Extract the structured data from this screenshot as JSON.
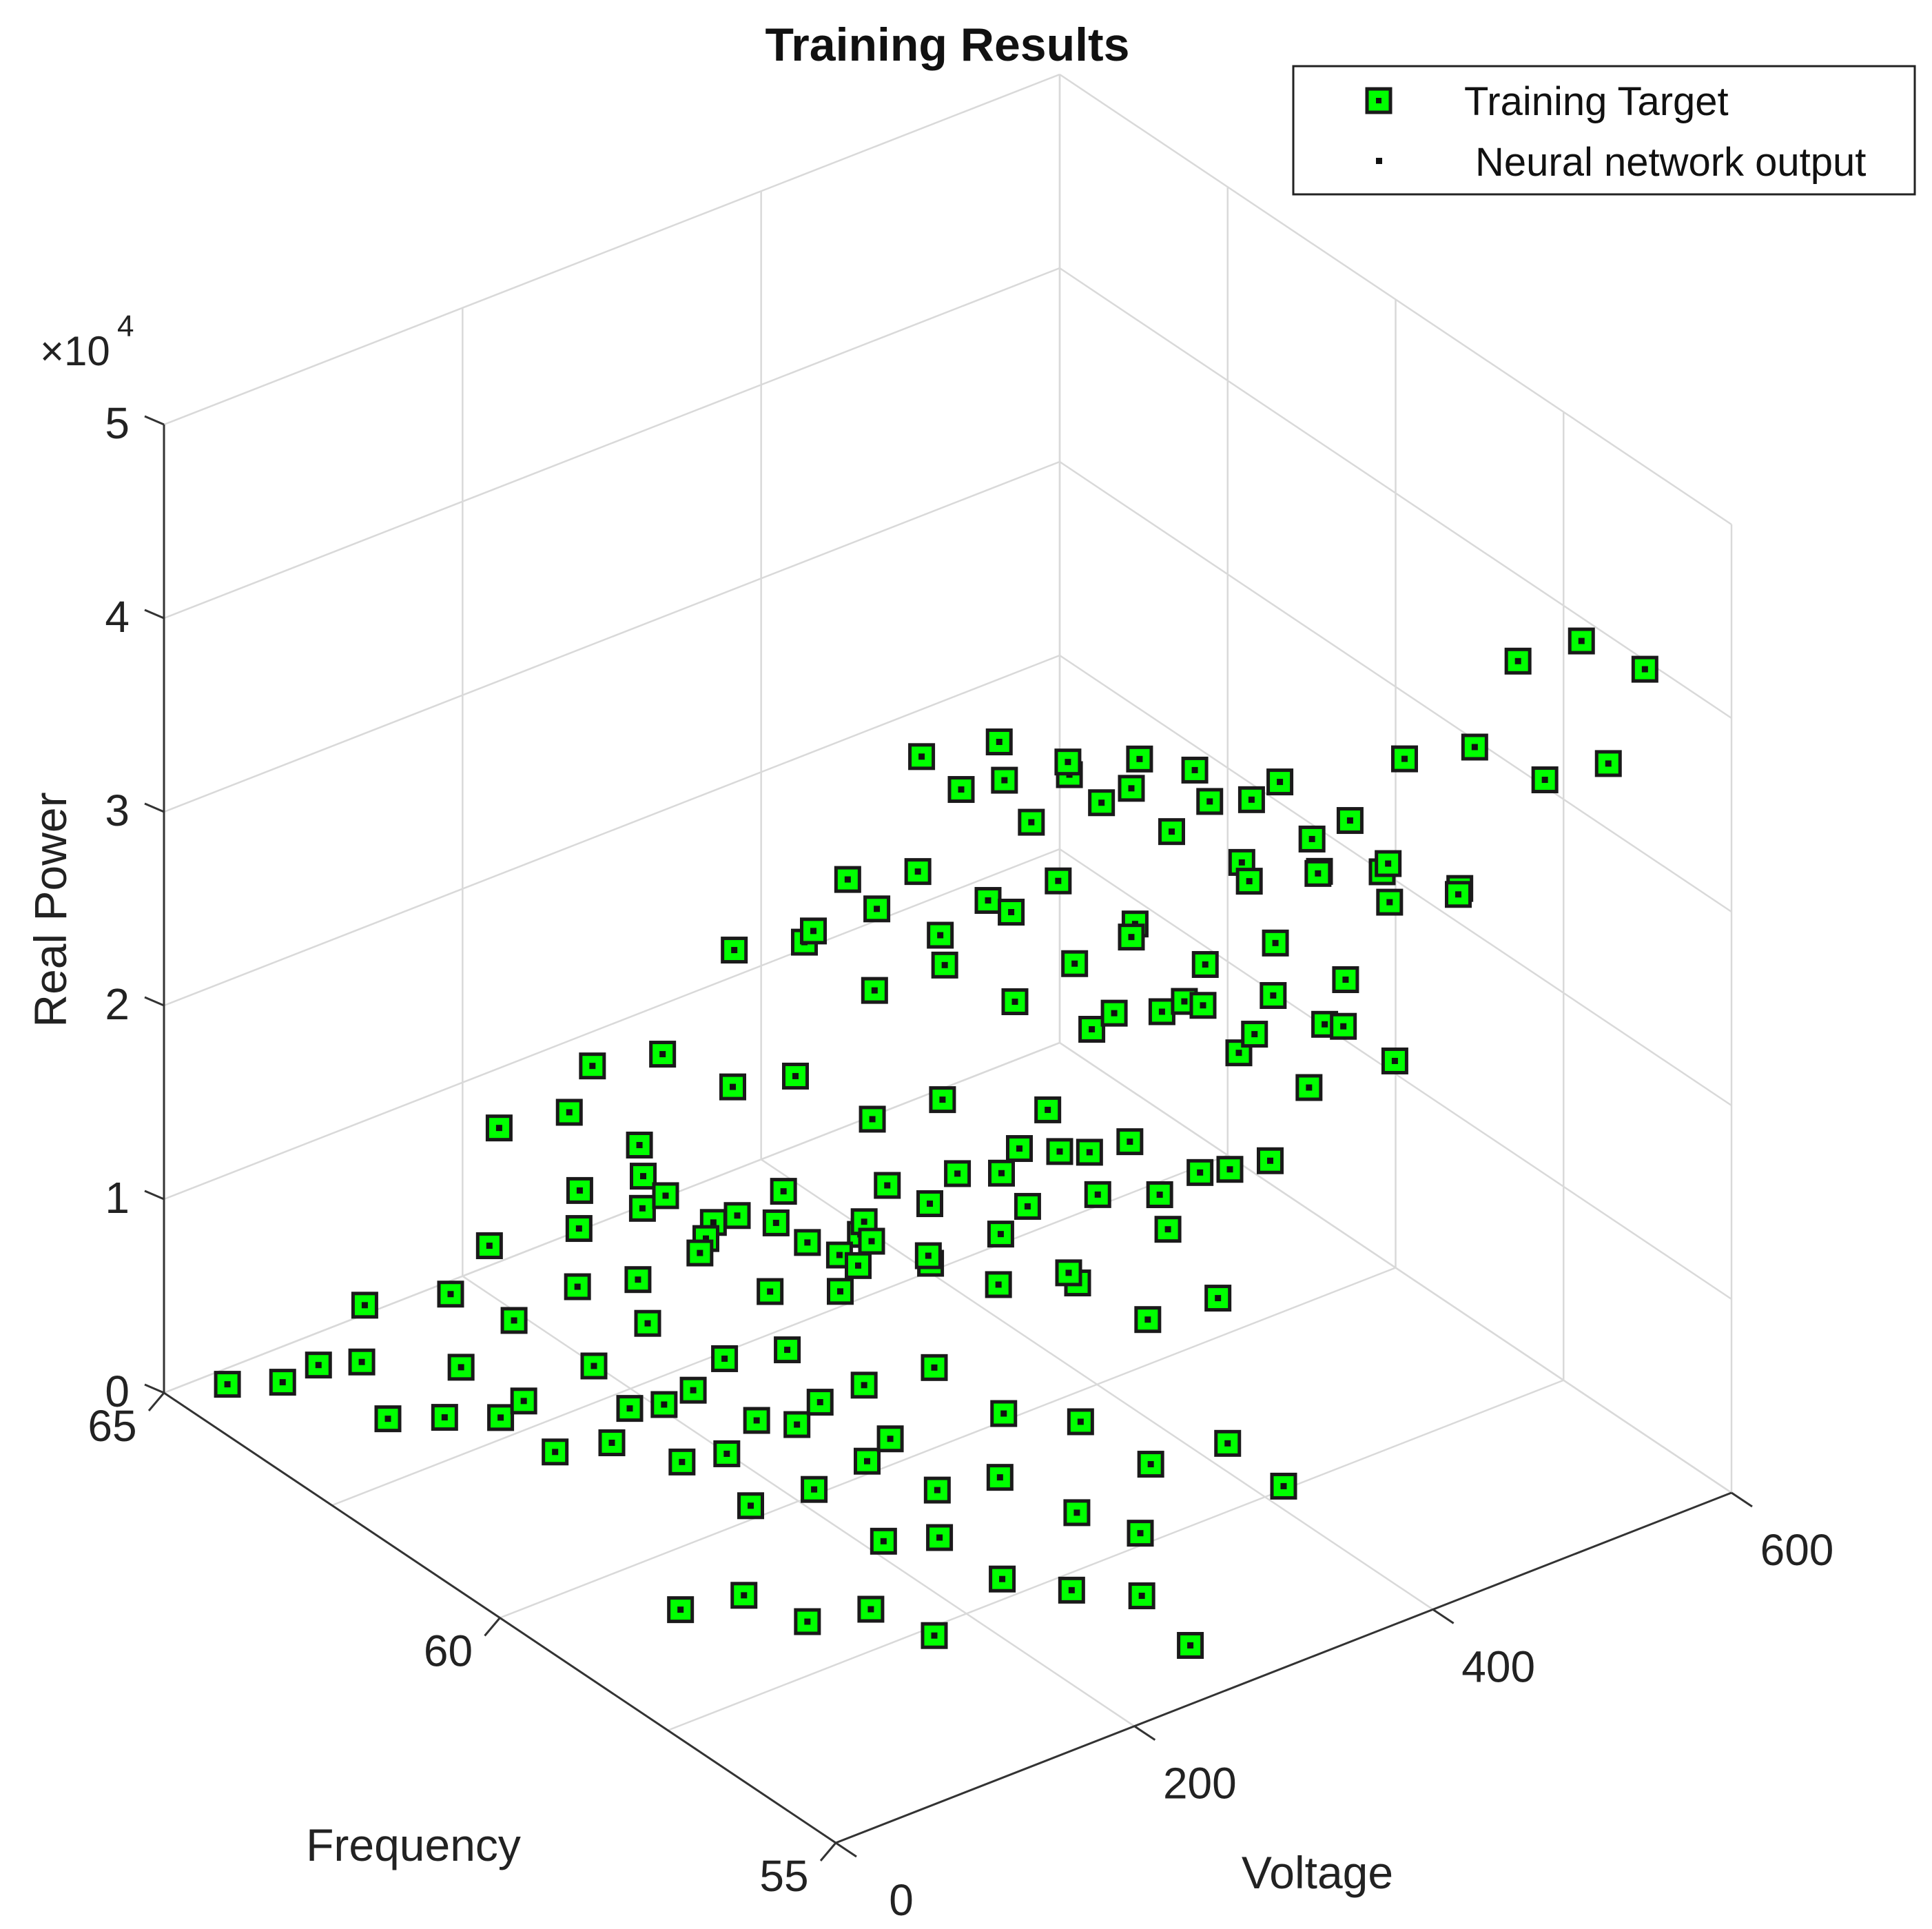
{
  "chart_data": {
    "type": "scatter3d",
    "title": "Training Results",
    "xlabel": "Frequency",
    "ylabel": "Voltage",
    "zlabel": "Real Power",
    "xlim": [
      55,
      65
    ],
    "ylim": [
      0,
      600
    ],
    "zlim": [
      0,
      50000
    ],
    "z_exponent_label": "×10",
    "z_exponent": "4",
    "grid": true,
    "legend_position": "top-right",
    "x_ticks": [
      {
        "value": 55,
        "label": "55"
      },
      {
        "value": 60,
        "label": "60"
      },
      {
        "value": 65,
        "label": "65"
      }
    ],
    "y_ticks": [
      {
        "value": 0,
        "label": "0"
      },
      {
        "value": 200,
        "label": "200"
      },
      {
        "value": 400,
        "label": "400"
      },
      {
        "value": 600,
        "label": "600"
      }
    ],
    "z_ticks": [
      {
        "value": 0,
        "label": "0"
      },
      {
        "value": 10000,
        "label": "1"
      },
      {
        "value": 20000,
        "label": "2"
      },
      {
        "value": 30000,
        "label": "3"
      },
      {
        "value": 40000,
        "label": "4"
      },
      {
        "value": 50000,
        "label": "5"
      }
    ],
    "series": [
      {
        "name": "Training Target",
        "marker": "square",
        "color": "#00ff00",
        "edge": "#1a1a1a"
      },
      {
        "name": "Neural network output",
        "marker": "point",
        "color": "#111111"
      }
    ],
    "points": [
      [
        64.5,
        20,
        1000
      ],
      [
        63.9,
        30,
        2200
      ],
      [
        63.7,
        45,
        3100
      ],
      [
        63.0,
        60,
        1500
      ],
      [
        62.6,
        80,
        1900
      ],
      [
        62.1,
        95,
        2600
      ],
      [
        61.4,
        100,
        2300
      ],
      [
        61.0,
        120,
        3100
      ],
      [
        60.4,
        140,
        2900
      ],
      [
        59.6,
        150,
        2200
      ],
      [
        59.1,
        170,
        3600
      ],
      [
        58.4,
        185,
        2100
      ],
      [
        57.9,
        200,
        3000
      ],
      [
        57.3,
        215,
        1800
      ],
      [
        56.6,
        230,
        2400
      ],
      [
        56.0,
        250,
        2900
      ],
      [
        55.5,
        260,
        1200
      ],
      [
        62.5,
        20,
        6800
      ],
      [
        62.9,
        40,
        8200
      ],
      [
        61.8,
        55,
        7100
      ],
      [
        61.2,
        70,
        6300
      ],
      [
        60.6,
        90,
        8900
      ],
      [
        60.0,
        110,
        7700
      ],
      [
        59.4,
        125,
        6100
      ],
      [
        58.8,
        145,
        8400
      ],
      [
        58.2,
        165,
        7300
      ],
      [
        57.6,
        185,
        6600
      ],
      [
        57.0,
        200,
        8200
      ],
      [
        56.3,
        220,
        7400
      ],
      [
        55.8,
        240,
        6900
      ],
      [
        63.4,
        120,
        5200
      ],
      [
        62.9,
        140,
        4400
      ],
      [
        62.4,
        160,
        6700
      ],
      [
        61.8,
        180,
        5600
      ],
      [
        61.1,
        200,
        4800
      ],
      [
        60.5,
        215,
        6200
      ],
      [
        59.8,
        235,
        5400
      ],
      [
        59.2,
        255,
        7100
      ],
      [
        58.5,
        270,
        5900
      ],
      [
        57.8,
        290,
        6500
      ],
      [
        57.2,
        310,
        5100
      ],
      [
        56.5,
        330,
        7200
      ],
      [
        56.0,
        345,
        5700
      ],
      [
        61.7,
        130,
        14200
      ],
      [
        61.2,
        150,
        15500
      ],
      [
        60.6,
        170,
        13900
      ],
      [
        60.0,
        190,
        16300
      ],
      [
        59.3,
        210,
        15100
      ],
      [
        58.7,
        230,
        14400
      ],
      [
        58.1,
        250,
        16700
      ],
      [
        57.4,
        270,
        15200
      ],
      [
        56.8,
        290,
        14100
      ],
      [
        56.2,
        310,
        16000
      ],
      [
        62.4,
        170,
        17800
      ],
      [
        61.8,
        190,
        19200
      ],
      [
        61.2,
        210,
        18300
      ],
      [
        60.6,
        225,
        19800
      ],
      [
        59.9,
        245,
        18600
      ],
      [
        59.3,
        265,
        20400
      ],
      [
        58.6,
        285,
        18900
      ],
      [
        58.0,
        305,
        19500
      ],
      [
        57.4,
        325,
        18100
      ],
      [
        56.8,
        345,
        20200
      ],
      [
        61.4,
        220,
        24600
      ],
      [
        60.8,
        240,
        25800
      ],
      [
        60.2,
        260,
        24100
      ],
      [
        59.6,
        280,
        26200
      ],
      [
        59.0,
        300,
        25100
      ],
      [
        58.3,
        320,
        24700
      ],
      [
        57.7,
        340,
        26400
      ],
      [
        57.0,
        360,
        25300
      ],
      [
        56.4,
        380,
        24300
      ],
      [
        60.6,
        260,
        28900
      ],
      [
        60.0,
        280,
        30100
      ],
      [
        59.4,
        300,
        29400
      ],
      [
        58.8,
        320,
        31200
      ],
      [
        58.1,
        340,
        30000
      ],
      [
        57.5,
        360,
        28700
      ],
      [
        56.9,
        380,
        30600
      ],
      [
        56.3,
        400,
        29500
      ],
      [
        59.8,
        300,
        34200
      ],
      [
        59.2,
        320,
        33300
      ],
      [
        58.6,
        340,
        35100
      ],
      [
        58.0,
        360,
        34400
      ],
      [
        57.4,
        380,
        33600
      ],
      [
        56.8,
        400,
        35600
      ],
      [
        56.2,
        420,
        34700
      ],
      [
        59.5,
        260,
        37800
      ],
      [
        58.9,
        285,
        39200
      ],
      [
        58.3,
        305,
        38300
      ],
      [
        57.7,
        325,
        39900
      ],
      [
        57.1,
        345,
        38500
      ],
      [
        56.5,
        365,
        40300
      ],
      [
        55.9,
        385,
        39100
      ],
      [
        58.0,
        120,
        36500
      ],
      [
        57.5,
        140,
        38200
      ],
      [
        57.0,
        160,
        37400
      ],
      [
        56.5,
        185,
        39000
      ],
      [
        56.0,
        205,
        36900
      ],
      [
        55.6,
        225,
        38600
      ],
      [
        57.6,
        230,
        41900
      ],
      [
        57.1,
        250,
        43400
      ],
      [
        56.6,
        270,
        42600
      ],
      [
        56.1,
        290,
        44100
      ],
      [
        55.7,
        310,
        42900
      ],
      [
        60.6,
        80,
        16300
      ],
      [
        60.1,
        100,
        17900
      ],
      [
        59.6,
        120,
        16900
      ],
      [
        59.0,
        140,
        18500
      ],
      [
        58.5,
        160,
        17400
      ],
      [
        59.4,
        60,
        10400
      ],
      [
        58.9,
        80,
        11900
      ],
      [
        58.4,
        100,
        10900
      ],
      [
        57.9,
        120,
        12400
      ],
      [
        57.3,
        140,
        11300
      ],
      [
        58.2,
        40,
        3400
      ],
      [
        57.7,
        60,
        4700
      ],
      [
        57.2,
        80,
        3900
      ],
      [
        56.7,
        100,
        5100
      ],
      [
        56.2,
        120,
        4300
      ],
      [
        60.9,
        300,
        11200
      ],
      [
        60.3,
        320,
        12600
      ],
      [
        59.7,
        340,
        11700
      ],
      [
        59.1,
        360,
        13100
      ],
      [
        58.5,
        380,
        12100
      ],
      [
        59.3,
        380,
        21400
      ],
      [
        58.7,
        400,
        22800
      ],
      [
        58.1,
        420,
        21900
      ],
      [
        57.5,
        440,
        23200
      ],
      [
        56.9,
        460,
        22100
      ],
      [
        58.4,
        430,
        28800
      ],
      [
        57.8,
        450,
        30100
      ],
      [
        57.2,
        470,
        29300
      ],
      [
        56.6,
        490,
        30800
      ],
      [
        57.2,
        480,
        36400
      ],
      [
        56.6,
        500,
        37800
      ],
      [
        56.0,
        520,
        36900
      ],
      [
        55.5,
        540,
        38300
      ],
      [
        56.4,
        520,
        42100
      ],
      [
        55.9,
        540,
        43700
      ],
      [
        55.4,
        560,
        42800
      ],
      [
        62.0,
        330,
        3600
      ],
      [
        61.4,
        350,
        4900
      ],
      [
        60.8,
        370,
        4200
      ],
      [
        60.2,
        390,
        5600
      ],
      [
        61.0,
        420,
        9100
      ],
      [
        60.4,
        440,
        10400
      ],
      [
        59.8,
        460,
        9600
      ],
      [
        59.2,
        480,
        11000
      ],
      [
        60.2,
        480,
        16700
      ],
      [
        59.6,
        500,
        18000
      ],
      [
        59.0,
        520,
        17200
      ],
      [
        59.6,
        530,
        23400
      ],
      [
        59.0,
        550,
        24700
      ],
      [
        58.4,
        570,
        23900
      ],
      [
        63.8,
        330,
        2000
      ],
      [
        63.2,
        350,
        1400
      ],
      [
        62.8,
        370,
        2800
      ],
      [
        64.2,
        300,
        3000
      ],
      [
        63.5,
        250,
        1800
      ],
      [
        64.6,
        200,
        2500
      ],
      [
        55.2,
        120,
        30500
      ],
      [
        55.4,
        160,
        32100
      ],
      [
        55.6,
        90,
        28900
      ],
      [
        55.8,
        60,
        27400
      ],
      [
        62.8,
        260,
        4500
      ],
      [
        62.2,
        280,
        3300
      ],
      [
        61.6,
        300,
        4100
      ],
      [
        60.9,
        40,
        22000
      ],
      [
        60.3,
        60,
        23600
      ],
      [
        59.7,
        80,
        22700
      ]
    ]
  }
}
